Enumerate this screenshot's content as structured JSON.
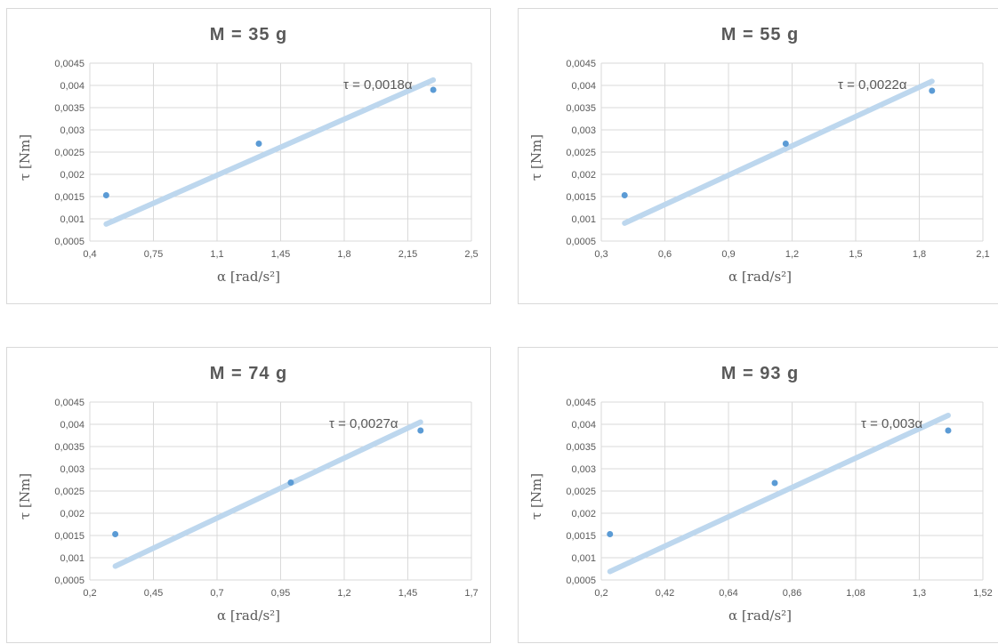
{
  "chart_data": [
    {
      "type": "scatter",
      "title": "M = 35 g",
      "xlabel": "α  [rad/s²]",
      "ylabel": "τ  [Nm]",
      "xlim": [
        0.4,
        2.5
      ],
      "ylim": [
        0.0005,
        0.0045
      ],
      "xticks": [
        "0,4",
        "0,75",
        "1,1",
        "1,45",
        "1,8",
        "2,15",
        "2,5"
      ],
      "yticks": [
        "0,0005",
        "0,001",
        "0,0015",
        "0,002",
        "0,0025",
        "0,003",
        "0,0035",
        "0,004",
        "0,0045"
      ],
      "points": [
        {
          "x": 0.49,
          "y": 0.00153
        },
        {
          "x": 1.33,
          "y": 0.00269
        },
        {
          "x": 2.29,
          "y": 0.0039
        }
      ],
      "trendline": {
        "slope": 0.0018,
        "x_range": [
          0.49,
          2.29
        ],
        "label": "τ = 0,0018α"
      },
      "grid": true
    },
    {
      "type": "scatter",
      "title": "M = 55 g",
      "xlabel": "α  [rad/s²]",
      "ylabel": "τ  [Nm]",
      "xlim": [
        0.3,
        2.1
      ],
      "ylim": [
        0.0005,
        0.0045
      ],
      "xticks": [
        "0,3",
        "0,6",
        "0,9",
        "1,2",
        "1,5",
        "1,8",
        "2,1"
      ],
      "yticks": [
        "0,0005",
        "0,001",
        "0,0015",
        "0,002",
        "0,0025",
        "0,003",
        "0,0035",
        "0,004",
        "0,0045"
      ],
      "points": [
        {
          "x": 0.41,
          "y": 0.00153
        },
        {
          "x": 1.17,
          "y": 0.00269
        },
        {
          "x": 1.86,
          "y": 0.00388
        }
      ],
      "trendline": {
        "slope": 0.0022,
        "x_range": [
          0.41,
          1.86
        ],
        "label": "τ = 0,0022α"
      },
      "grid": true
    },
    {
      "type": "scatter",
      "title": "M = 74 g",
      "xlabel": "α  [rad/s²]",
      "ylabel": "τ  [Nm]",
      "xlim": [
        0.2,
        1.7
      ],
      "ylim": [
        0.0005,
        0.0045
      ],
      "xticks": [
        "0,2",
        "0,45",
        "0,7",
        "0,95",
        "1,2",
        "1,45",
        "1,7"
      ],
      "yticks": [
        "0,0005",
        "0,001",
        "0,0015",
        "0,002",
        "0,0025",
        "0,003",
        "0,0035",
        "0,004",
        "0,0045"
      ],
      "points": [
        {
          "x": 0.3,
          "y": 0.00153
        },
        {
          "x": 0.99,
          "y": 0.00269
        },
        {
          "x": 1.5,
          "y": 0.00386
        }
      ],
      "trendline": {
        "slope": 0.0027,
        "x_range": [
          0.3,
          1.5
        ],
        "label": "τ = 0,0027α"
      },
      "grid": true
    },
    {
      "type": "scatter",
      "title": "M = 93 g",
      "xlabel": "α  [rad/s²]",
      "ylabel": "τ  [Nm]",
      "xlim": [
        0.2,
        1.52
      ],
      "ylim": [
        0.0005,
        0.0045
      ],
      "xticks": [
        "0,2",
        "0,42",
        "0,64",
        "0,86",
        "1,08",
        "1,3",
        "1,52"
      ],
      "yticks": [
        "0,0005",
        "0,001",
        "0,0015",
        "0,002",
        "0,0025",
        "0,003",
        "0,0035",
        "0,004",
        "0,0045"
      ],
      "points": [
        {
          "x": 0.23,
          "y": 0.00153
        },
        {
          "x": 0.8,
          "y": 0.00268
        },
        {
          "x": 1.4,
          "y": 0.00386
        }
      ],
      "trendline": {
        "slope": 0.003,
        "x_range": [
          0.23,
          1.4
        ],
        "label": "τ = 0,003α"
      },
      "grid": true
    }
  ],
  "colors": {
    "point": "#5b9bd5",
    "trendline": "#bdd7ee",
    "grid": "#d9d9d9",
    "text": "#595959"
  }
}
